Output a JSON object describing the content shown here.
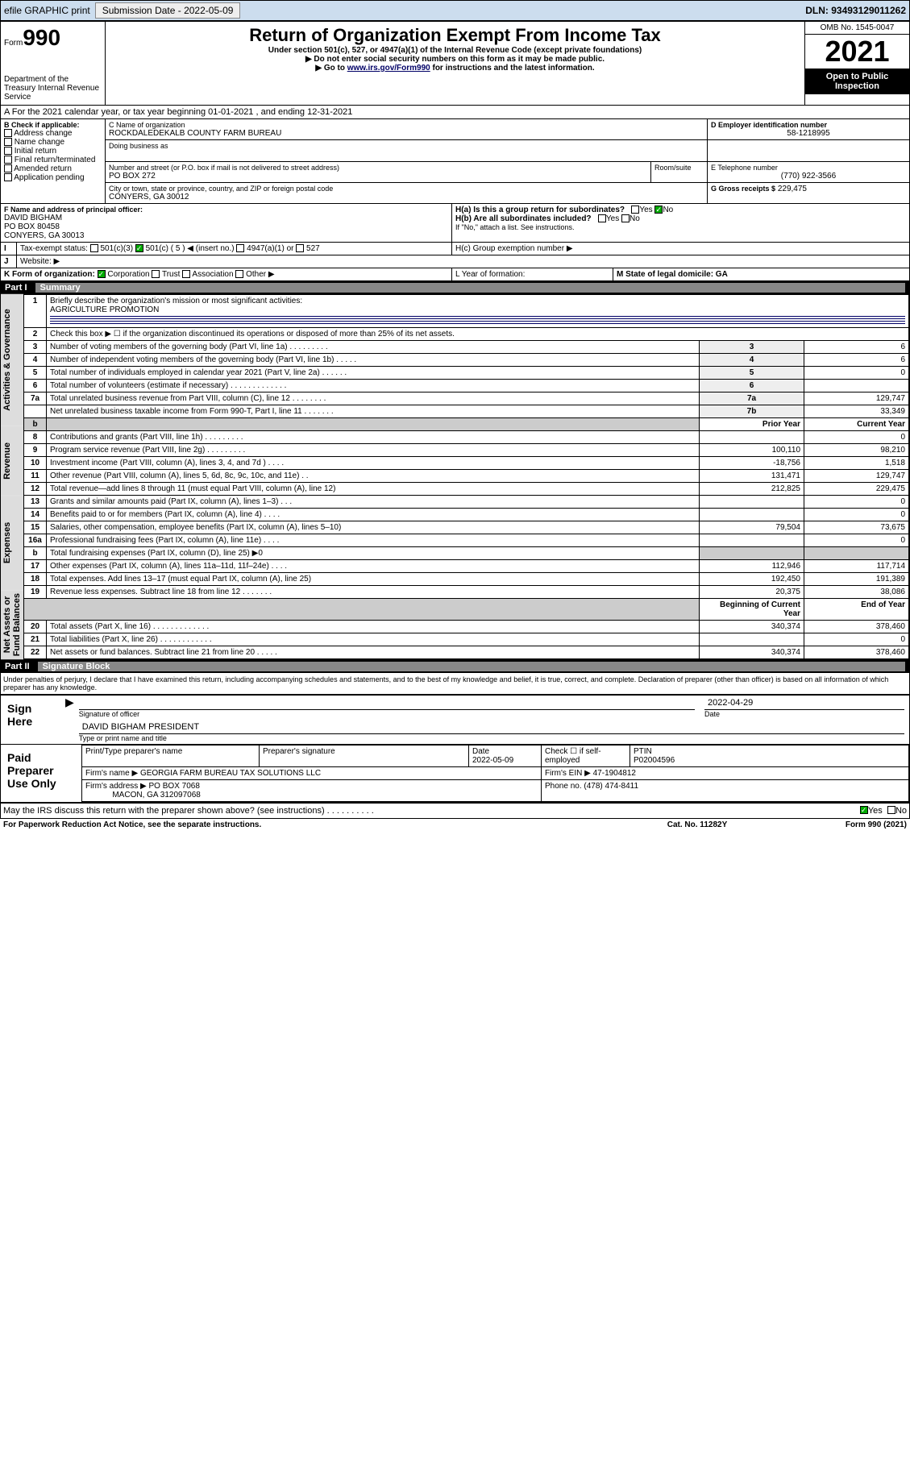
{
  "topbar": {
    "efile": "efile GRAPHIC print",
    "submission_label": "Submission Date - 2022-05-09",
    "dln_label": "DLN: 93493129011262"
  },
  "header": {
    "form_word": "Form",
    "form_num": "990",
    "title": "Return of Organization Exempt From Income Tax",
    "subtitle1": "Under section 501(c), 527, or 4947(a)(1) of the Internal Revenue Code (except private foundations)",
    "subtitle2": "▶ Do not enter social security numbers on this form as it may be made public.",
    "subtitle3": "▶ Go to www.irs.gov/Form990 for instructions and the latest information.",
    "dept": "Department of the Treasury\nInternal Revenue Service",
    "omb": "OMB No. 1545-0047",
    "year": "2021",
    "open": "Open to Public Inspection"
  },
  "period": {
    "line_a": "A For the 2021 calendar year, or tax year beginning 01-01-2021   , and ending 12-31-2021"
  },
  "boxB": {
    "label": "B Check if applicable:",
    "items": [
      "Address change",
      "Name change",
      "Initial return",
      "Final return/terminated",
      "Amended return",
      "Application pending"
    ]
  },
  "boxC": {
    "name_label": "C Name of organization",
    "name": "ROCKDALEDEKALB COUNTY FARM BUREAU",
    "dba_label": "Doing business as",
    "street_label": "Number and street (or P.O. box if mail is not delivered to street address)",
    "room_label": "Room/suite",
    "street": "PO BOX 272",
    "city_label": "City or town, state or province, country, and ZIP or foreign postal code",
    "city": "CONYERS, GA  30012"
  },
  "boxD": {
    "label": "D Employer identification number",
    "value": "58-1218995"
  },
  "boxE": {
    "label": "E Telephone number",
    "value": "(770) 922-3566"
  },
  "boxG": {
    "label": "G Gross receipts $",
    "value": "229,475"
  },
  "boxF": {
    "label": "F  Name and address of principal officer:",
    "name": "DAVID BIGHAM",
    "addr1": "PO BOX 80458",
    "addr2": "CONYERS, GA  30013"
  },
  "boxH": {
    "a": "H(a)  Is this a group return for subordinates?",
    "b": "H(b)  Are all subordinates included?",
    "note": "If \"No,\" attach a list. See instructions.",
    "c": "H(c)  Group exemption number ▶"
  },
  "boxI": {
    "label": "Tax-exempt status:",
    "opts": [
      "501(c)(3)",
      "501(c) ( 5 ) ◀ (insert no.)",
      "4947(a)(1) or",
      "527"
    ]
  },
  "boxJ": {
    "label": "Website: ▶"
  },
  "boxK": {
    "label": "K Form of organization:",
    "opts": [
      "Corporation",
      "Trust",
      "Association",
      "Other ▶"
    ]
  },
  "boxL": {
    "label": "L Year of formation:"
  },
  "boxM": {
    "label": "M State of legal domicile: GA"
  },
  "part1": {
    "header_part": "Part I",
    "header_title": "Summary",
    "q1": "Briefly describe the organization's mission or most significant activities:",
    "q1_ans": "AGRICULTURE PROMOTION",
    "q2": "Check this box ▶ ☐  if the organization discontinued its operations or disposed of more than 25% of its net assets.",
    "lines_simple": [
      {
        "n": "3",
        "desc": "Number of voting members of the governing body (Part VI, line 1a)   .   .   .   .   .   .   .   .   .",
        "box": "3",
        "val": "6"
      },
      {
        "n": "4",
        "desc": "Number of independent voting members of the governing body (Part VI, line 1b)    .   .   .   .   .",
        "box": "4",
        "val": "6"
      },
      {
        "n": "5",
        "desc": "Total number of individuals employed in calendar year 2021 (Part V, line 2a)    .   .   .   .   .   .",
        "box": "5",
        "val": "0"
      },
      {
        "n": "6",
        "desc": "Total number of volunteers (estimate if necessary)    .   .   .   .   .   .   .   .   .   .   .   .   .",
        "box": "6",
        "val": ""
      },
      {
        "n": "7a",
        "desc": "Total unrelated business revenue from Part VIII, column (C), line 12   .   .   .   .   .   .   .   .",
        "box": "7a",
        "val": "129,747"
      },
      {
        "n": "",
        "desc": "Net unrelated business taxable income from Form 990-T, Part I, line 11   .   .   .   .   .   .   .",
        "box": "7b",
        "val": "33,349"
      }
    ],
    "col_headers": {
      "prior": "Prior Year",
      "curr": "Current Year"
    },
    "revenue": [
      {
        "n": "8",
        "desc": "Contributions and grants (Part VIII, line 1h)   .   .   .   .   .   .   .   .   .",
        "p": "",
        "c": "0"
      },
      {
        "n": "9",
        "desc": "Program service revenue (Part VIII, line 2g)   .   .   .   .   .   .   .   .   .",
        "p": "100,110",
        "c": "98,210"
      },
      {
        "n": "10",
        "desc": "Investment income (Part VIII, column (A), lines 3, 4, and 7d )   .   .   .   .",
        "p": "-18,756",
        "c": "1,518"
      },
      {
        "n": "11",
        "desc": "Other revenue (Part VIII, column (A), lines 5, 6d, 8c, 9c, 10c, and 11e)   .   .",
        "p": "131,471",
        "c": "129,747"
      },
      {
        "n": "12",
        "desc": "Total revenue—add lines 8 through 11 (must equal Part VIII, column (A), line 12)",
        "p": "212,825",
        "c": "229,475"
      }
    ],
    "expenses": [
      {
        "n": "13",
        "desc": "Grants and similar amounts paid (Part IX, column (A), lines 1–3)   .   .   .",
        "p": "",
        "c": "0"
      },
      {
        "n": "14",
        "desc": "Benefits paid to or for members (Part IX, column (A), line 4)   .   .   .   .",
        "p": "",
        "c": "0"
      },
      {
        "n": "15",
        "desc": "Salaries, other compensation, employee benefits (Part IX, column (A), lines 5–10)",
        "p": "79,504",
        "c": "73,675"
      },
      {
        "n": "16a",
        "desc": "Professional fundraising fees (Part IX, column (A), line 11e)   .   .   .   .",
        "p": "",
        "c": "0"
      },
      {
        "n": "b",
        "desc": "Total fundraising expenses (Part IX, column (D), line 25) ▶0",
        "p": "shade",
        "c": "shade"
      },
      {
        "n": "17",
        "desc": "Other expenses (Part IX, column (A), lines 11a–11d, 11f–24e)   .   .   .   .",
        "p": "112,946",
        "c": "117,714"
      },
      {
        "n": "18",
        "desc": "Total expenses. Add lines 13–17 (must equal Part IX, column (A), line 25)",
        "p": "192,450",
        "c": "191,389"
      },
      {
        "n": "19",
        "desc": "Revenue less expenses. Subtract line 18 from line 12   .   .   .   .   .   .   .",
        "p": "20,375",
        "c": "38,086"
      }
    ],
    "net_headers": {
      "beg": "Beginning of Current Year",
      "end": "End of Year"
    },
    "net": [
      {
        "n": "20",
        "desc": "Total assets (Part X, line 16)   .   .   .   .   .   .   .   .   .   .   .   .   .",
        "p": "340,374",
        "c": "378,460"
      },
      {
        "n": "21",
        "desc": "Total liabilities (Part X, line 26)   .   .   .   .   .   .   .   .   .   .   .   .",
        "p": "",
        "c": "0"
      },
      {
        "n": "22",
        "desc": "Net assets or fund balances. Subtract line 21 from line 20   .   .   .   .   .",
        "p": "340,374",
        "c": "378,460"
      }
    ],
    "side_labels": {
      "gov": "Activities & Governance",
      "rev": "Revenue",
      "exp": "Expenses",
      "net": "Net Assets or\nFund Balances"
    }
  },
  "part2": {
    "header_part": "Part II",
    "header_title": "Signature Block",
    "penalty": "Under penalties of perjury, I declare that I have examined this return, including accompanying schedules and statements, and to the best of my knowledge and belief, it is true, correct, and complete. Declaration of preparer (other than officer) is based on all information of which preparer has any knowledge.",
    "sign_here": "Sign Here",
    "sig_officer": "Signature of officer",
    "sig_date": "2022-04-29",
    "date_label": "Date",
    "officer_name": "DAVID BIGHAM PRESIDENT",
    "officer_sub": "Type or print name and title",
    "paid": "Paid Preparer Use Only",
    "prep_cols": {
      "name": "Print/Type preparer's name",
      "sig": "Preparer's signature",
      "date": "Date\n2022-05-09",
      "check": "Check ☐ if self-employed",
      "ptin": "PTIN\nP02004596"
    },
    "firm_name_label": "Firm's name    ▶",
    "firm_name": "GEORGIA FARM BUREAU TAX SOLUTIONS LLC",
    "firm_ein_label": "Firm's EIN ▶",
    "firm_ein": "47-1904812",
    "firm_addr_label": "Firm's address ▶",
    "firm_addr1": "PO BOX 7068",
    "firm_addr2": "MACON, GA  312097068",
    "phone_label": "Phone no.",
    "phone": "(478) 474-8411",
    "discuss": "May the IRS discuss this return with the preparer shown above? (see instructions)   .   .   .   .   .   .   .   .   .   .",
    "yes": "Yes",
    "no": "No"
  },
  "footer": {
    "left": "For Paperwork Reduction Act Notice, see the separate instructions.",
    "mid": "Cat. No. 11282Y",
    "right": "Form 990 (2021)"
  },
  "colors": {
    "link": "#003399",
    "black": "#000000",
    "shade": "#cccccc",
    "topbar": "#cde"
  }
}
